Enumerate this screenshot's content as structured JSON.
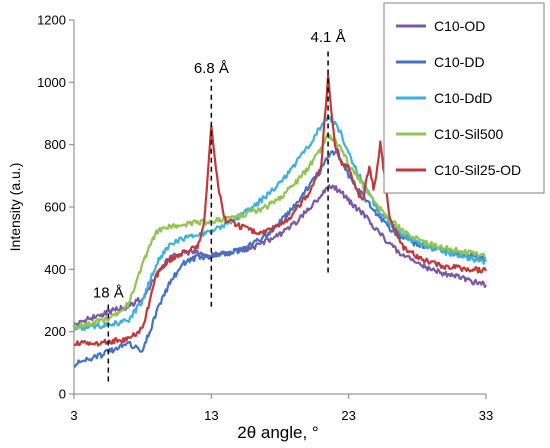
{
  "chart_data": {
    "type": "line",
    "xlabel": "2θ angle, °",
    "ylabel": "Intensity (a.u.)",
    "xlim": [
      3,
      33
    ],
    "ylim": [
      0,
      1200
    ],
    "xticks": [
      3,
      13,
      23,
      33
    ],
    "yticks": [
      0,
      200,
      400,
      600,
      800,
      1000,
      1200
    ],
    "grid": false,
    "legend_position": "top-right",
    "annotations": [
      {
        "label": "18 Å",
        "x": 5.5,
        "y_from": 40,
        "y_to": 290
      },
      {
        "label": "6.8 Å",
        "x": 13.0,
        "y_from": 280,
        "y_to": 1010
      },
      {
        "label": "4.1 Å",
        "x": 21.5,
        "y_from": 390,
        "y_to": 1110
      }
    ],
    "series": [
      {
        "name": "C10-OD",
        "color": "#7b58a6",
        "x": [
          3,
          4,
          5,
          6,
          7,
          8,
          9,
          10,
          11,
          12,
          13,
          14,
          15,
          16,
          17,
          18,
          19,
          20,
          21,
          21.5,
          22,
          22.5,
          23,
          24,
          25,
          26,
          27,
          28,
          29,
          30,
          31,
          32,
          33
        ],
        "y": [
          220,
          240,
          255,
          270,
          280,
          310,
          380,
          440,
          455,
          455,
          445,
          450,
          460,
          470,
          490,
          510,
          545,
          590,
          635,
          670,
          660,
          645,
          620,
          580,
          530,
          480,
          445,
          420,
          400,
          385,
          375,
          360,
          350
        ]
      },
      {
        "name": "C10-DD",
        "color": "#4472c4",
        "x": [
          3,
          4,
          5,
          6,
          7,
          8,
          9,
          10,
          11,
          12,
          13,
          14,
          15,
          16,
          17,
          18,
          19,
          20,
          21,
          21.5,
          22,
          22.5,
          23,
          24,
          25,
          26,
          27,
          28,
          29,
          30,
          31,
          32,
          33
        ],
        "y": [
          95,
          110,
          125,
          145,
          160,
          140,
          260,
          360,
          420,
          440,
          440,
          450,
          460,
          480,
          510,
          550,
          600,
          660,
          720,
          760,
          780,
          750,
          700,
          640,
          580,
          530,
          500,
          480,
          470,
          460,
          450,
          440,
          430
        ]
      },
      {
        "name": "C10-DdD",
        "color": "#3fb0d9",
        "x": [
          3,
          4,
          5,
          6,
          7,
          8,
          9,
          10,
          11,
          12,
          13,
          14,
          15,
          16,
          17,
          18,
          19,
          20,
          21,
          21.5,
          22,
          22.5,
          23,
          24,
          25,
          26,
          27,
          28,
          29,
          30,
          31,
          32,
          33
        ],
        "y": [
          210,
          215,
          220,
          225,
          240,
          300,
          420,
          480,
          500,
          510,
          520,
          545,
          570,
          600,
          635,
          680,
          730,
          790,
          860,
          890,
          870,
          830,
          770,
          680,
          600,
          550,
          510,
          485,
          470,
          455,
          445,
          435,
          425
        ]
      },
      {
        "name": "C10-Sil500",
        "color": "#92c353",
        "x": [
          3,
          4,
          5,
          6,
          7,
          8,
          9,
          10,
          11,
          12,
          13,
          14,
          15,
          16,
          17,
          18,
          19,
          20,
          21,
          21.5,
          22,
          22.5,
          23,
          24,
          25,
          26,
          27,
          28,
          29,
          30,
          31,
          32,
          33
        ],
        "y": [
          215,
          225,
          235,
          250,
          290,
          420,
          520,
          540,
          545,
          550,
          555,
          560,
          570,
          585,
          600,
          630,
          670,
          720,
          790,
          830,
          810,
          780,
          740,
          670,
          610,
          560,
          520,
          495,
          480,
          470,
          460,
          450,
          440
        ]
      },
      {
        "name": "C10-Sil25-OD",
        "color": "#c0393b",
        "x": [
          3,
          4,
          5,
          6,
          7,
          8,
          9,
          10,
          11,
          12,
          12.5,
          13,
          13.5,
          14,
          15,
          16,
          17,
          18,
          19,
          20,
          21,
          21.5,
          22,
          22.5,
          23,
          23.5,
          24,
          24.5,
          24.8,
          25,
          25.3,
          25.6,
          26,
          27,
          28,
          29,
          30,
          31,
          32,
          33
        ],
        "y": [
          165,
          160,
          165,
          170,
          175,
          210,
          380,
          430,
          455,
          470,
          560,
          860,
          660,
          560,
          540,
          520,
          520,
          540,
          580,
          640,
          730,
          1020,
          800,
          740,
          730,
          660,
          620,
          730,
          660,
          690,
          810,
          700,
          560,
          470,
          440,
          420,
          410,
          405,
          400,
          395
        ]
      }
    ]
  }
}
